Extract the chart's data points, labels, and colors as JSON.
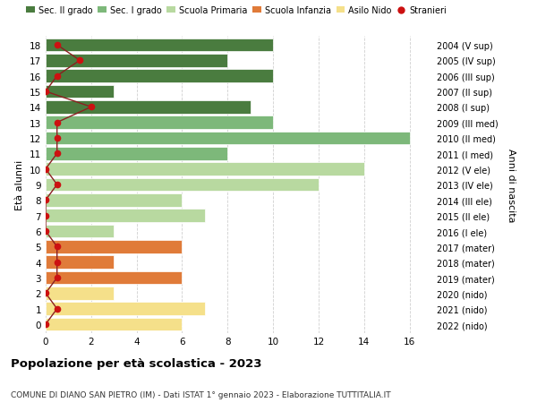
{
  "ages": [
    18,
    17,
    16,
    15,
    14,
    13,
    12,
    11,
    10,
    9,
    8,
    7,
    6,
    5,
    4,
    3,
    2,
    1,
    0
  ],
  "labels_right": [
    "2004 (V sup)",
    "2005 (IV sup)",
    "2006 (III sup)",
    "2007 (II sup)",
    "2008 (I sup)",
    "2009 (III med)",
    "2010 (II med)",
    "2011 (I med)",
    "2012 (V ele)",
    "2013 (IV ele)",
    "2014 (III ele)",
    "2015 (II ele)",
    "2016 (I ele)",
    "2017 (mater)",
    "2018 (mater)",
    "2019 (mater)",
    "2020 (nido)",
    "2021 (nido)",
    "2022 (nido)"
  ],
  "bar_values": [
    10,
    8,
    10,
    3,
    9,
    10,
    16,
    8,
    14,
    12,
    6,
    7,
    3,
    6,
    3,
    6,
    3,
    7,
    6
  ],
  "bar_colors": [
    "#4a7c3f",
    "#4a7c3f",
    "#4a7c3f",
    "#4a7c3f",
    "#4a7c3f",
    "#7db87a",
    "#7db87a",
    "#7db87a",
    "#b8d9a0",
    "#b8d9a0",
    "#b8d9a0",
    "#b8d9a0",
    "#b8d9a0",
    "#e07b39",
    "#e07b39",
    "#e07b39",
    "#f5e08a",
    "#f5e08a",
    "#f5e08a"
  ],
  "stranieri_x": [
    0.5,
    1.5,
    0.5,
    0.0,
    2.0,
    0.5,
    0.5,
    0.5,
    0.0,
    0.5,
    0.0,
    0.0,
    0.0,
    0.5,
    0.5,
    0.5,
    0.0,
    0.5,
    0.0
  ],
  "legend_labels": [
    "Sec. II grado",
    "Sec. I grado",
    "Scuola Primaria",
    "Scuola Infanzia",
    "Asilo Nido",
    "Stranieri"
  ],
  "legend_colors": [
    "#4a7c3f",
    "#7db87a",
    "#b8d9a0",
    "#e07b39",
    "#f5e08a",
    "#cc1111"
  ],
  "ylabel_left": "Età alunni",
  "ylabel_right": "Anni di nascita",
  "title": "Popolazione per età scolastica - 2023",
  "subtitle": "COMUNE DI DIANO SAN PIETRO (IM) - Dati ISTAT 1° gennaio 2023 - Elaborazione TUTTITALIA.IT",
  "xlim": [
    0,
    17
  ],
  "ylim_min": -0.55,
  "ylim_max": 18.55,
  "xticks": [
    0,
    2,
    4,
    6,
    8,
    10,
    12,
    14,
    16
  ],
  "background_color": "#ffffff",
  "grid_color": "#d0d0d0",
  "stranieri_line_color": "#8b2020",
  "stranieri_dot_color": "#cc1111"
}
